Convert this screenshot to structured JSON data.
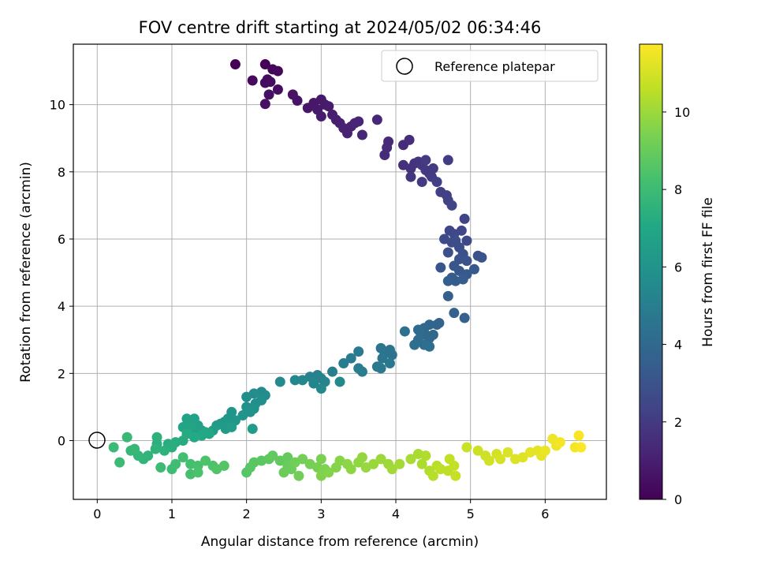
{
  "chart_data": {
    "type": "scatter",
    "title": "FOV centre drift starting at 2024/05/02 06:34:46",
    "xlabel": "Angular distance from reference (arcmin)",
    "ylabel": "Rotation from reference (arcmin)",
    "xlim": [
      -0.32,
      6.82
    ],
    "ylim": [
      -1.75,
      11.8
    ],
    "x_ticks": [
      "0",
      "1",
      "2",
      "3",
      "4",
      "5",
      "6"
    ],
    "y_ticks": [
      "0",
      "2",
      "4",
      "6",
      "8",
      "10"
    ],
    "grid": true,
    "legend": {
      "position": "top-right",
      "entries": [
        "Reference platepar"
      ]
    },
    "reference_point": {
      "x": 0,
      "y": 0,
      "label": "Reference platepar"
    },
    "colorbar": {
      "label": "Hours from first FF file",
      "colormap": "viridis",
      "range": [
        0,
        11.75
      ],
      "ticks": [
        "0",
        "2",
        "4",
        "6",
        "8",
        "10"
      ]
    },
    "series": [
      {
        "color_by": "hours",
        "points": [
          [
            1.85,
            11.2,
            0.0
          ],
          [
            2.25,
            11.2,
            0.1
          ],
          [
            2.35,
            11.05,
            0.2
          ],
          [
            2.42,
            11.0,
            0.25
          ],
          [
            2.08,
            10.72,
            0.3
          ],
          [
            2.25,
            10.65,
            0.35
          ],
          [
            2.28,
            10.75,
            0.35
          ],
          [
            2.32,
            10.68,
            0.4
          ],
          [
            2.42,
            10.45,
            0.45
          ],
          [
            2.3,
            10.3,
            0.5
          ],
          [
            2.25,
            10.02,
            0.55
          ],
          [
            2.62,
            10.3,
            0.6
          ],
          [
            2.68,
            10.12,
            0.65
          ],
          [
            2.82,
            9.9,
            0.7
          ],
          [
            2.9,
            10.05,
            0.75
          ],
          [
            2.95,
            9.85,
            0.8
          ],
          [
            3.0,
            10.15,
            0.8
          ],
          [
            3.05,
            10.0,
            0.85
          ],
          [
            3.1,
            9.95,
            0.9
          ],
          [
            3.0,
            9.65,
            0.9
          ],
          [
            3.15,
            9.7,
            0.95
          ],
          [
            3.2,
            9.55,
            1.0
          ],
          [
            3.25,
            9.45,
            1.05
          ],
          [
            3.3,
            9.3,
            1.1
          ],
          [
            3.35,
            9.15,
            1.1
          ],
          [
            3.4,
            9.35,
            1.15
          ],
          [
            3.45,
            9.45,
            1.2
          ],
          [
            3.5,
            9.5,
            1.2
          ],
          [
            3.55,
            9.1,
            1.25
          ],
          [
            3.75,
            9.55,
            1.3
          ],
          [
            3.9,
            8.9,
            1.35
          ],
          [
            3.88,
            8.72,
            1.4
          ],
          [
            3.85,
            8.5,
            1.45
          ],
          [
            4.1,
            8.8,
            1.5
          ],
          [
            4.18,
            8.95,
            1.55
          ],
          [
            4.1,
            8.2,
            1.6
          ],
          [
            4.2,
            8.1,
            1.65
          ],
          [
            4.25,
            8.25,
            1.7
          ],
          [
            4.3,
            8.3,
            1.75
          ],
          [
            4.2,
            7.85,
            1.8
          ],
          [
            4.35,
            8.2,
            1.85
          ],
          [
            4.4,
            8.05,
            1.9
          ],
          [
            4.45,
            7.95,
            1.95
          ],
          [
            4.5,
            8.1,
            2.0
          ],
          [
            4.35,
            7.7,
            2.0
          ],
          [
            4.48,
            7.85,
            2.05
          ],
          [
            4.4,
            8.35,
            2.05
          ],
          [
            4.7,
            8.35,
            2.1
          ],
          [
            4.55,
            7.7,
            2.15
          ],
          [
            4.6,
            7.4,
            2.2
          ],
          [
            4.68,
            7.3,
            2.25
          ],
          [
            4.7,
            7.15,
            2.3
          ],
          [
            4.75,
            7.0,
            2.35
          ],
          [
            4.92,
            6.6,
            2.4
          ],
          [
            4.88,
            6.25,
            2.45
          ],
          [
            4.72,
            6.25,
            2.5
          ],
          [
            4.78,
            6.15,
            2.55
          ],
          [
            4.95,
            5.95,
            2.6
          ],
          [
            4.65,
            6.0,
            2.65
          ],
          [
            4.75,
            5.9,
            2.7
          ],
          [
            4.8,
            5.95,
            2.75
          ],
          [
            4.85,
            5.75,
            2.8
          ],
          [
            4.7,
            5.6,
            2.85
          ],
          [
            4.9,
            5.55,
            2.9
          ],
          [
            5.1,
            5.5,
            2.95
          ],
          [
            5.15,
            5.45,
            3.0
          ],
          [
            4.95,
            5.35,
            3.05
          ],
          [
            4.85,
            5.4,
            3.05
          ],
          [
            4.6,
            5.15,
            3.1
          ],
          [
            4.78,
            5.2,
            3.15
          ],
          [
            4.85,
            5.05,
            3.2
          ],
          [
            5.05,
            5.1,
            3.25
          ],
          [
            4.95,
            4.95,
            3.3
          ],
          [
            4.75,
            4.85,
            3.35
          ],
          [
            4.8,
            4.75,
            3.4
          ],
          [
            4.9,
            4.8,
            3.45
          ],
          [
            4.7,
            4.75,
            3.5
          ],
          [
            4.7,
            4.3,
            3.55
          ],
          [
            4.78,
            3.8,
            3.6
          ],
          [
            4.92,
            3.65,
            3.65
          ],
          [
            4.58,
            3.5,
            3.7
          ],
          [
            4.55,
            3.45,
            3.75
          ],
          [
            4.45,
            3.45,
            3.8
          ],
          [
            4.38,
            3.35,
            3.85
          ],
          [
            4.4,
            3.15,
            3.9
          ],
          [
            4.45,
            3.05,
            3.95
          ],
          [
            4.5,
            3.15,
            4.0
          ],
          [
            4.32,
            3.25,
            4.05
          ],
          [
            4.3,
            3.3,
            4.1
          ],
          [
            4.3,
            3.0,
            4.15
          ],
          [
            4.38,
            2.85,
            4.2
          ],
          [
            4.45,
            2.8,
            4.25
          ],
          [
            4.25,
            2.85,
            4.3
          ],
          [
            4.12,
            3.25,
            4.35
          ],
          [
            3.95,
            2.55,
            4.4
          ],
          [
            3.92,
            2.7,
            4.45
          ],
          [
            3.85,
            2.6,
            4.5
          ],
          [
            3.8,
            2.75,
            4.55
          ],
          [
            3.82,
            2.45,
            4.6
          ],
          [
            3.75,
            2.2,
            4.65
          ],
          [
            3.92,
            2.3,
            4.7
          ],
          [
            3.8,
            2.15,
            4.75
          ],
          [
            3.5,
            2.65,
            4.8
          ],
          [
            3.4,
            2.45,
            4.85
          ],
          [
            3.3,
            2.3,
            4.9
          ],
          [
            3.5,
            2.15,
            4.95
          ],
          [
            3.55,
            2.05,
            5.0
          ],
          [
            3.15,
            2.05,
            5.05
          ],
          [
            2.95,
            1.95,
            5.1
          ],
          [
            2.85,
            1.9,
            5.15
          ],
          [
            3.0,
            1.85,
            5.2
          ],
          [
            3.05,
            1.75,
            5.25
          ],
          [
            2.9,
            1.7,
            5.3
          ],
          [
            2.75,
            1.8,
            5.35
          ],
          [
            2.65,
            1.8,
            5.4
          ],
          [
            3.0,
            1.55,
            5.45
          ],
          [
            3.25,
            1.75,
            5.5
          ],
          [
            2.45,
            1.75,
            5.55
          ],
          [
            2.2,
            1.45,
            5.6
          ],
          [
            2.1,
            1.4,
            5.65
          ],
          [
            2.25,
            1.35,
            5.7
          ],
          [
            2.0,
            1.3,
            5.75
          ],
          [
            2.2,
            1.2,
            5.8
          ],
          [
            2.12,
            1.1,
            5.85
          ],
          [
            2.0,
            1.0,
            5.9
          ],
          [
            2.1,
            0.95,
            5.95
          ],
          [
            2.05,
            0.85,
            6.0
          ],
          [
            1.95,
            0.75,
            6.05
          ],
          [
            1.8,
            0.85,
            6.1
          ],
          [
            1.75,
            0.65,
            6.15
          ],
          [
            1.85,
            0.6,
            6.2
          ],
          [
            1.7,
            0.55,
            6.25
          ],
          [
            1.65,
            0.5,
            6.3
          ],
          [
            1.6,
            0.45,
            6.35
          ],
          [
            1.72,
            0.35,
            6.4
          ],
          [
            2.08,
            0.35,
            6.45
          ],
          [
            1.8,
            0.4,
            6.5
          ],
          [
            1.55,
            0.3,
            6.55
          ],
          [
            1.4,
            0.3,
            6.6
          ],
          [
            1.3,
            0.35,
            6.65
          ],
          [
            1.35,
            0.45,
            6.7
          ],
          [
            1.3,
            0.65,
            6.75
          ],
          [
            1.2,
            0.65,
            6.8
          ],
          [
            1.25,
            0.45,
            6.85
          ],
          [
            1.15,
            0.4,
            6.9
          ],
          [
            1.45,
            0.25,
            6.95
          ],
          [
            1.5,
            0.2,
            7.0
          ],
          [
            1.4,
            0.15,
            7.05
          ],
          [
            1.3,
            0.1,
            7.1
          ],
          [
            1.2,
            0.2,
            7.15
          ],
          [
            1.15,
            0.0,
            7.2
          ],
          [
            1.05,
            -0.05,
            7.25
          ],
          [
            0.95,
            -0.1,
            7.3
          ],
          [
            1.0,
            -0.2,
            7.35
          ],
          [
            0.8,
            -0.1,
            7.4
          ],
          [
            0.8,
            0.1,
            7.45
          ],
          [
            0.9,
            -0.3,
            7.5
          ],
          [
            0.78,
            -0.25,
            7.55
          ],
          [
            0.68,
            -0.45,
            7.6
          ],
          [
            0.62,
            -0.55,
            7.65
          ],
          [
            0.55,
            -0.45,
            7.7
          ],
          [
            0.45,
            -0.3,
            7.75
          ],
          [
            0.5,
            -0.25,
            7.8
          ],
          [
            0.4,
            0.1,
            7.85
          ],
          [
            0.22,
            -0.2,
            7.9
          ],
          [
            0.3,
            -0.65,
            7.95
          ],
          [
            0.85,
            -0.8,
            8.0
          ],
          [
            1.0,
            -0.85,
            8.05
          ],
          [
            1.05,
            -0.7,
            8.1
          ],
          [
            1.15,
            -0.5,
            8.15
          ],
          [
            1.25,
            -0.7,
            8.2
          ],
          [
            1.25,
            -1.0,
            8.25
          ],
          [
            1.35,
            -0.75,
            8.3
          ],
          [
            1.35,
            -0.95,
            8.35
          ],
          [
            1.45,
            -0.6,
            8.4
          ],
          [
            1.55,
            -0.75,
            8.45
          ],
          [
            1.6,
            -0.85,
            8.5
          ],
          [
            1.7,
            -0.75,
            8.55
          ],
          [
            2.0,
            -0.95,
            8.6
          ],
          [
            2.05,
            -0.8,
            8.65
          ],
          [
            2.1,
            -0.65,
            8.7
          ],
          [
            2.2,
            -0.6,
            8.75
          ],
          [
            2.3,
            -0.55,
            8.8
          ],
          [
            2.35,
            -0.45,
            8.85
          ],
          [
            2.45,
            -0.6,
            8.9
          ],
          [
            2.55,
            -0.5,
            8.95
          ],
          [
            2.55,
            -0.75,
            9.0
          ],
          [
            2.6,
            -0.85,
            9.05
          ],
          [
            2.5,
            -0.95,
            9.1
          ],
          [
            2.7,
            -1.05,
            9.15
          ],
          [
            2.65,
            -0.65,
            9.2
          ],
          [
            2.75,
            -0.55,
            9.25
          ],
          [
            2.85,
            -0.7,
            9.3
          ],
          [
            2.95,
            -0.8,
            9.35
          ],
          [
            3.0,
            -0.55,
            9.4
          ],
          [
            3.05,
            -0.85,
            9.45
          ],
          [
            3.0,
            -1.05,
            9.5
          ],
          [
            3.1,
            -0.95,
            9.55
          ],
          [
            3.2,
            -0.8,
            9.6
          ],
          [
            3.25,
            -0.6,
            9.65
          ],
          [
            3.35,
            -0.7,
            9.7
          ],
          [
            3.4,
            -0.85,
            9.75
          ],
          [
            3.5,
            -0.65,
            9.8
          ],
          [
            3.55,
            -0.5,
            9.85
          ],
          [
            3.6,
            -0.8,
            9.9
          ],
          [
            3.7,
            -0.7,
            9.95
          ],
          [
            3.8,
            -0.55,
            10.0
          ],
          [
            3.9,
            -0.7,
            10.05
          ],
          [
            3.95,
            -0.85,
            10.1
          ],
          [
            4.05,
            -0.7,
            10.15
          ],
          [
            4.2,
            -0.55,
            10.2
          ],
          [
            4.3,
            -0.4,
            10.25
          ],
          [
            4.35,
            -0.7,
            10.3
          ],
          [
            4.4,
            -0.45,
            10.35
          ],
          [
            4.45,
            -0.9,
            10.4
          ],
          [
            4.5,
            -1.05,
            10.45
          ],
          [
            4.55,
            -0.75,
            10.5
          ],
          [
            4.6,
            -0.85,
            10.55
          ],
          [
            4.7,
            -0.9,
            10.6
          ],
          [
            4.72,
            -0.55,
            10.65
          ],
          [
            4.78,
            -0.75,
            10.7
          ],
          [
            4.8,
            -1.05,
            10.75
          ],
          [
            4.95,
            -0.2,
            10.8
          ],
          [
            5.1,
            -0.3,
            10.85
          ],
          [
            5.2,
            -0.45,
            10.9
          ],
          [
            5.25,
            -0.6,
            10.95
          ],
          [
            5.35,
            -0.4,
            11.0
          ],
          [
            5.4,
            -0.55,
            11.05
          ],
          [
            5.5,
            -0.35,
            11.1
          ],
          [
            5.6,
            -0.55,
            11.15
          ],
          [
            5.7,
            -0.5,
            11.2
          ],
          [
            5.8,
            -0.35,
            11.25
          ],
          [
            5.9,
            -0.3,
            11.3
          ],
          [
            5.95,
            -0.45,
            11.35
          ],
          [
            6.0,
            -0.3,
            11.4
          ],
          [
            6.1,
            0.05,
            11.45
          ],
          [
            6.15,
            -0.15,
            11.5
          ],
          [
            6.2,
            -0.05,
            11.55
          ],
          [
            6.4,
            -0.2,
            11.6
          ],
          [
            6.45,
            0.15,
            11.65
          ],
          [
            6.48,
            -0.2,
            11.7
          ]
        ]
      }
    ]
  }
}
